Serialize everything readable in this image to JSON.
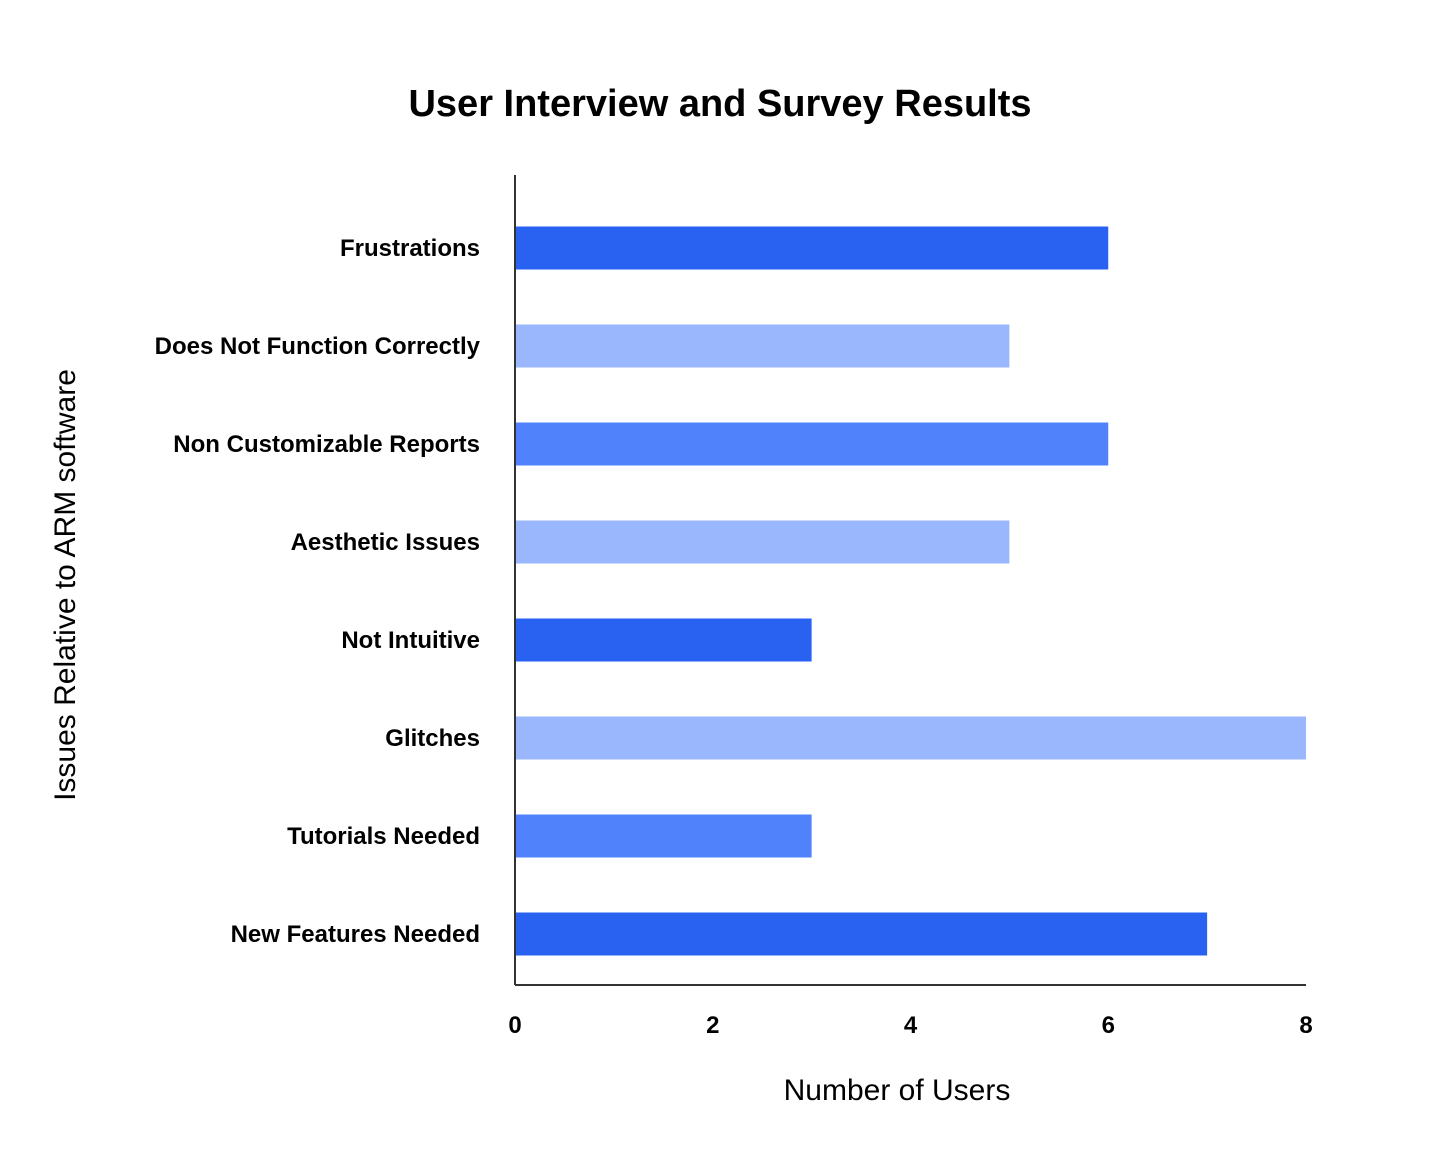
{
  "chart_data": {
    "type": "bar",
    "orientation": "horizontal",
    "title": "User Interview and Survey Results",
    "xlabel": "Number of Users",
    "ylabel": "Issues Relative to ARM software",
    "categories": [
      "Frustrations",
      "Does Not Function Correctly",
      "Non Customizable Reports",
      "Aesthetic Issues",
      "Not Intuitive",
      "Glitches",
      "Tutorials Needed",
      "New Features Needed"
    ],
    "values": [
      6,
      5,
      6,
      5,
      3,
      8,
      3,
      7
    ],
    "bar_colors": [
      "#2962f0",
      "#9ab6fc",
      "#5082fc",
      "#9ab6fc",
      "#2962f0",
      "#9ab6fc",
      "#5082fc",
      "#2962f0"
    ],
    "xlim": [
      0,
      8
    ],
    "xticks": [
      "0",
      "2",
      "4",
      "6",
      "8"
    ],
    "grid": false,
    "legend": "none"
  }
}
